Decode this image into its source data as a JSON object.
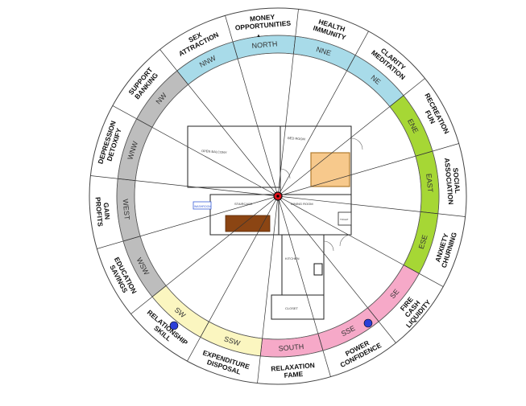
{
  "directions": [
    {
      "label": "NORTH",
      "color": "#a8dbe9",
      "quality": [
        "MONEY",
        "OPPORTUNITIES"
      ]
    },
    {
      "label": "NNE",
      "color": "#a8dbe9",
      "quality": [
        "HEALTH",
        "IMMUNITY"
      ]
    },
    {
      "label": "NE",
      "color": "#a8dbe9",
      "quality": [
        "CLARITY",
        "MEDITATION"
      ]
    },
    {
      "label": "ENE",
      "color": "#a6d735",
      "quality": [
        "RECREATION",
        "FUN"
      ]
    },
    {
      "label": "EAST",
      "color": "#a6d735",
      "quality": [
        "SOCIAL",
        "ASSOCIATION"
      ]
    },
    {
      "label": "ESE",
      "color": "#a6d735",
      "quality": [
        "ANXIETY",
        "CHURNING"
      ]
    },
    {
      "label": "SE",
      "color": "#f6a9c8",
      "quality": [
        "FIRE",
        "CASH",
        "LIQUIDITY"
      ]
    },
    {
      "label": "SSE",
      "color": "#f6a9c8",
      "quality": [
        "POWER",
        "CONFIDENCE"
      ]
    },
    {
      "label": "SOUTH",
      "color": "#f6a9c8",
      "quality": [
        "RELAXATION",
        "FAME"
      ]
    },
    {
      "label": "SSW",
      "color": "#fbf6c0",
      "quality": [
        "EXPENDITURE",
        "DISPOSAL"
      ]
    },
    {
      "label": "SW",
      "color": "#fbf6c0",
      "quality": [
        "RELATIONSHIP",
        "SKILL"
      ]
    },
    {
      "label": "WSW",
      "color": "#bdbdbd",
      "quality": [
        "EDUCATION",
        "SAVINGS"
      ]
    },
    {
      "label": "WEST",
      "color": "#bdbdbd",
      "quality": [
        "GAIN",
        "PROFITS"
      ]
    },
    {
      "label": "WNW",
      "color": "#bdbdbd",
      "quality": [
        "DEPRESSION",
        "DETOXIFY"
      ]
    },
    {
      "label": "NW",
      "color": "#bdbdbd",
      "quality": [
        "SUPPORT",
        "BANKING"
      ]
    },
    {
      "label": "NNW",
      "color": "#a8dbe9",
      "quality": [
        "SEX",
        "ATTRACTION"
      ]
    }
  ],
  "markers": {
    "center_color": "#e0101a",
    "dot_color": "#2b3fd8",
    "north_arrow": "▲"
  },
  "floor_plan": {
    "rooms": [
      "OPEN BALCONY",
      "BED ROOM",
      "STAIRCASE",
      "DINING ROOM",
      "KITCHEN",
      "TOILET",
      "CLOSET",
      "WASHROOM"
    ]
  },
  "colors": {
    "north_zone": "#a8dbe9",
    "east_zone": "#a6d735",
    "south_zone": "#f6a9c8",
    "southwest_zone": "#fbf6c0",
    "west_zone": "#bdbdbd",
    "bed_fill": "#f7c98c",
    "table_fill": "#8b4513"
  }
}
